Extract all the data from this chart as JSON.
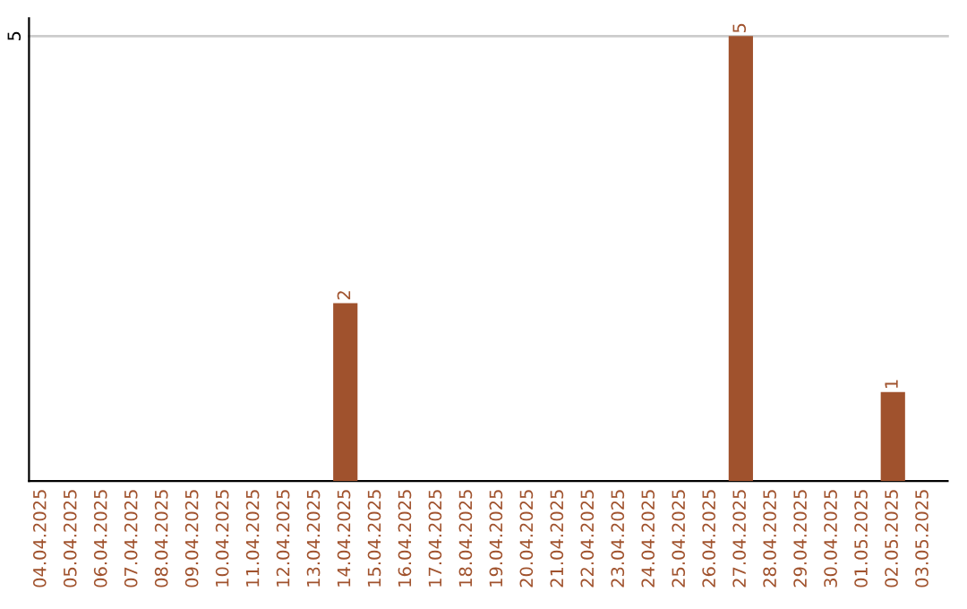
{
  "chart_data": {
    "type": "bar",
    "categories": [
      "04.04.2025",
      "05.04.2025",
      "06.04.2025",
      "07.04.2025",
      "08.04.2025",
      "09.04.2025",
      "10.04.2025",
      "11.04.2025",
      "12.04.2025",
      "13.04.2025",
      "14.04.2025",
      "15.04.2025",
      "16.04.2025",
      "17.04.2025",
      "18.04.2025",
      "19.04.2025",
      "20.04.2025",
      "21.04.2025",
      "22.04.2025",
      "23.04.2025",
      "24.04.2025",
      "25.04.2025",
      "26.04.2025",
      "27.04.2025",
      "28.04.2025",
      "29.04.2025",
      "30.04.2025",
      "01.05.2025",
      "02.05.2025",
      "03.05.2025"
    ],
    "values": [
      0,
      0,
      0,
      0,
      0,
      0,
      0,
      0,
      0,
      0,
      2,
      0,
      0,
      0,
      0,
      0,
      0,
      0,
      0,
      0,
      0,
      0,
      0,
      5,
      0,
      0,
      0,
      0,
      1,
      0
    ],
    "value_labels": [
      null,
      null,
      null,
      null,
      null,
      null,
      null,
      null,
      null,
      null,
      "2",
      null,
      null,
      null,
      null,
      null,
      null,
      null,
      null,
      null,
      null,
      null,
      null,
      "5",
      null,
      null,
      null,
      null,
      "1",
      null
    ],
    "color": "#a0522d",
    "ylim": [
      0,
      5.2
    ],
    "yticks": [
      5
    ],
    "grid": "y"
  }
}
